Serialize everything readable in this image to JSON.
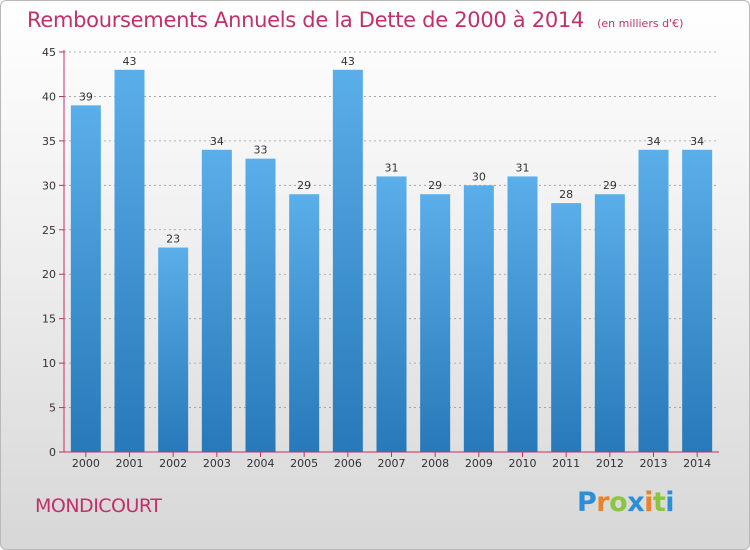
{
  "title": {
    "main": "Remboursements Annuels de la Dette de 2000 à 2014",
    "unit": "(en milliers d'€)"
  },
  "commune": "MONDICOURT",
  "logo": {
    "letters": [
      "P",
      "r",
      "o",
      "x",
      "i",
      "t",
      "i"
    ],
    "colors": [
      "#2a8fd6",
      "#e8832a",
      "#8cc63f",
      "#2a8fd6",
      "#e8832a",
      "#8cc63f",
      "#2a8fd6"
    ]
  },
  "colors": {
    "bar_top": "#5aaee9",
    "bar_bottom": "#2779b9",
    "accent": "#c1306b",
    "grid": "#9a9a9a"
  },
  "chart_data": {
    "type": "bar",
    "categories": [
      "2000",
      "2001",
      "2002",
      "2003",
      "2004",
      "2005",
      "2006",
      "2007",
      "2008",
      "2009",
      "2010",
      "2011",
      "2012",
      "2013",
      "2014"
    ],
    "values": [
      39,
      43,
      23,
      34,
      33,
      29,
      43,
      31,
      29,
      30,
      31,
      28,
      29,
      34,
      34
    ],
    "ylim": [
      0,
      45
    ],
    "yticks": [
      0,
      5,
      10,
      15,
      20,
      25,
      30,
      35,
      40,
      45
    ],
    "grid": true
  }
}
